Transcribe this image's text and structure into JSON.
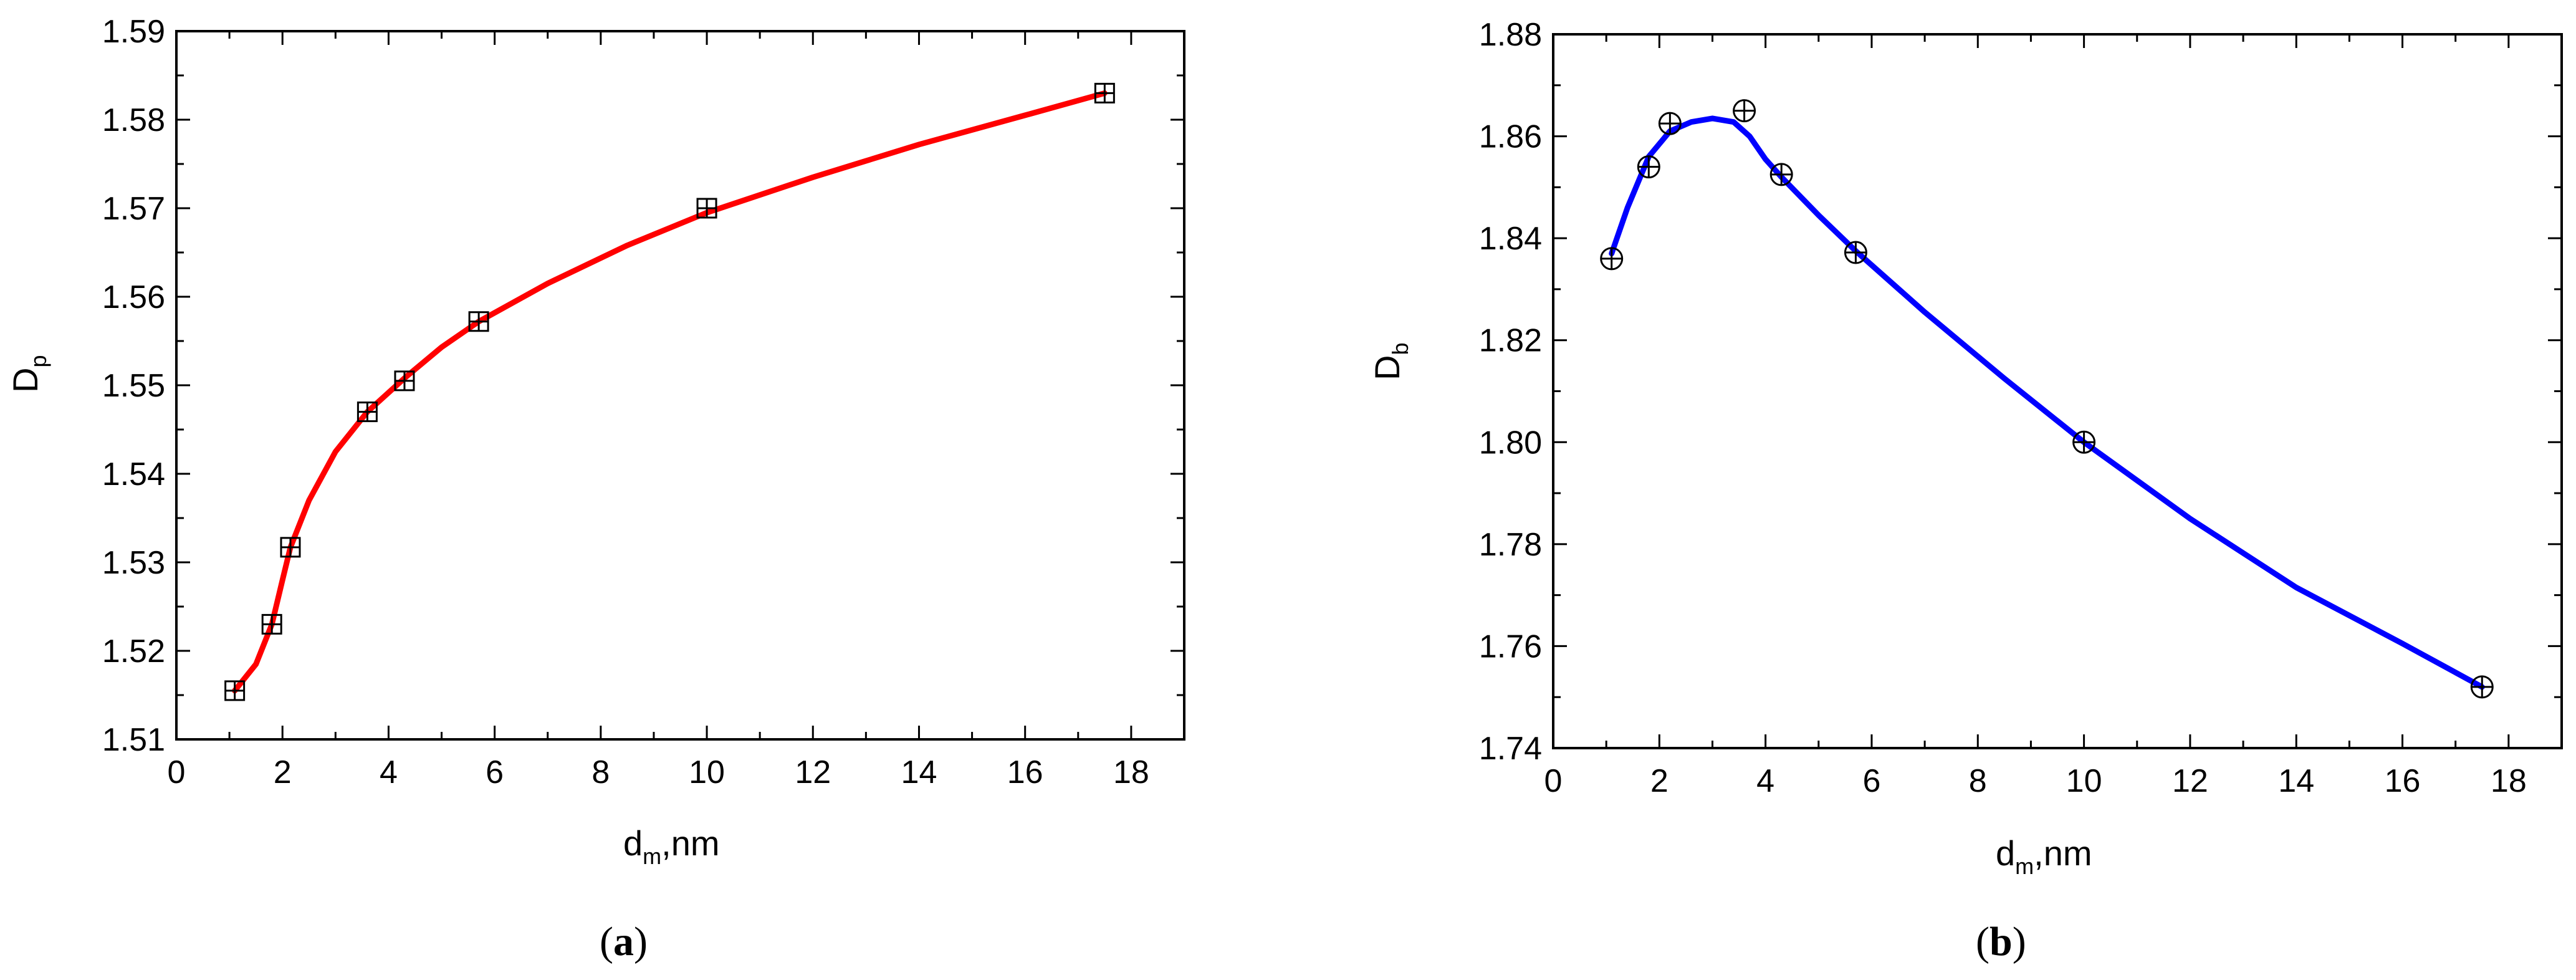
{
  "chart_data": [
    {
      "type": "scatter",
      "panel_label": "(a)",
      "panel_letter": "a",
      "xlabel": "d",
      "xlabel_sub": "m",
      "xlabel_suffix": ",nm",
      "ylabel": "D",
      "ylabel_sub": "p",
      "xlim": [
        0,
        19
      ],
      "ylim": [
        1.51,
        1.59
      ],
      "xticks": [
        "0",
        "2",
        "4",
        "6",
        "8",
        "10",
        "12",
        "14",
        "16",
        "18"
      ],
      "yticks": [
        "1.51",
        "1.52",
        "1.53",
        "1.54",
        "1.55",
        "1.56",
        "1.57",
        "1.58",
        "1.59"
      ],
      "marker": "square-plus",
      "line_color": "#ff0000",
      "series": [
        {
          "x": [
            1.1,
            1.8,
            2.15,
            3.6,
            4.3,
            5.7,
            10.0,
            17.5
          ],
          "y": [
            1.5155,
            1.523,
            1.5317,
            1.547,
            1.5505,
            1.5572,
            1.57,
            1.583
          ]
        }
      ],
      "fit_curve": {
        "x": [
          1.1,
          1.5,
          1.8,
          2.0,
          2.15,
          2.5,
          3.0,
          3.6,
          4.3,
          5.0,
          5.7,
          7.0,
          8.5,
          10.0,
          12.0,
          14.0,
          16.0,
          17.5
        ],
        "y": [
          1.5155,
          1.5185,
          1.523,
          1.528,
          1.5317,
          1.537,
          1.5425,
          1.547,
          1.5508,
          1.5543,
          1.5572,
          1.5615,
          1.5658,
          1.5695,
          1.5735,
          1.5772,
          1.5805,
          1.583
        ]
      }
    },
    {
      "type": "scatter",
      "panel_label": "(b)",
      "panel_letter": "b",
      "xlabel": "d",
      "xlabel_sub": "m",
      "xlabel_suffix": ",nm",
      "ylabel": "D",
      "ylabel_sub": "b",
      "xlim": [
        0,
        19
      ],
      "ylim": [
        1.74,
        1.88
      ],
      "xticks": [
        "0",
        "2",
        "4",
        "6",
        "8",
        "10",
        "12",
        "14",
        "16",
        "18"
      ],
      "yticks": [
        "1.74",
        "1.76",
        "1.78",
        "1.80",
        "1.82",
        "1.84",
        "1.86",
        "1.88"
      ],
      "marker": "circle-plus",
      "line_color": "#0000ff",
      "series": [
        {
          "x": [
            1.1,
            1.8,
            2.2,
            3.6,
            4.3,
            5.7,
            10.0,
            17.5
          ],
          "y": [
            1.836,
            1.854,
            1.8625,
            1.865,
            1.8525,
            1.8372,
            1.8,
            1.752
          ]
        }
      ],
      "fit_curve": {
        "x": [
          1.1,
          1.4,
          1.8,
          2.2,
          2.6,
          3.0,
          3.4,
          3.7,
          4.0,
          4.3,
          5.0,
          5.7,
          7.0,
          8.5,
          10.0,
          12.0,
          14.0,
          16.0,
          17.5
        ],
        "y": [
          1.837,
          1.846,
          1.856,
          1.861,
          1.8628,
          1.8635,
          1.8628,
          1.86,
          1.8555,
          1.852,
          1.8445,
          1.8375,
          1.8255,
          1.8125,
          1.8,
          1.785,
          1.7715,
          1.7605,
          1.752
        ]
      }
    }
  ]
}
